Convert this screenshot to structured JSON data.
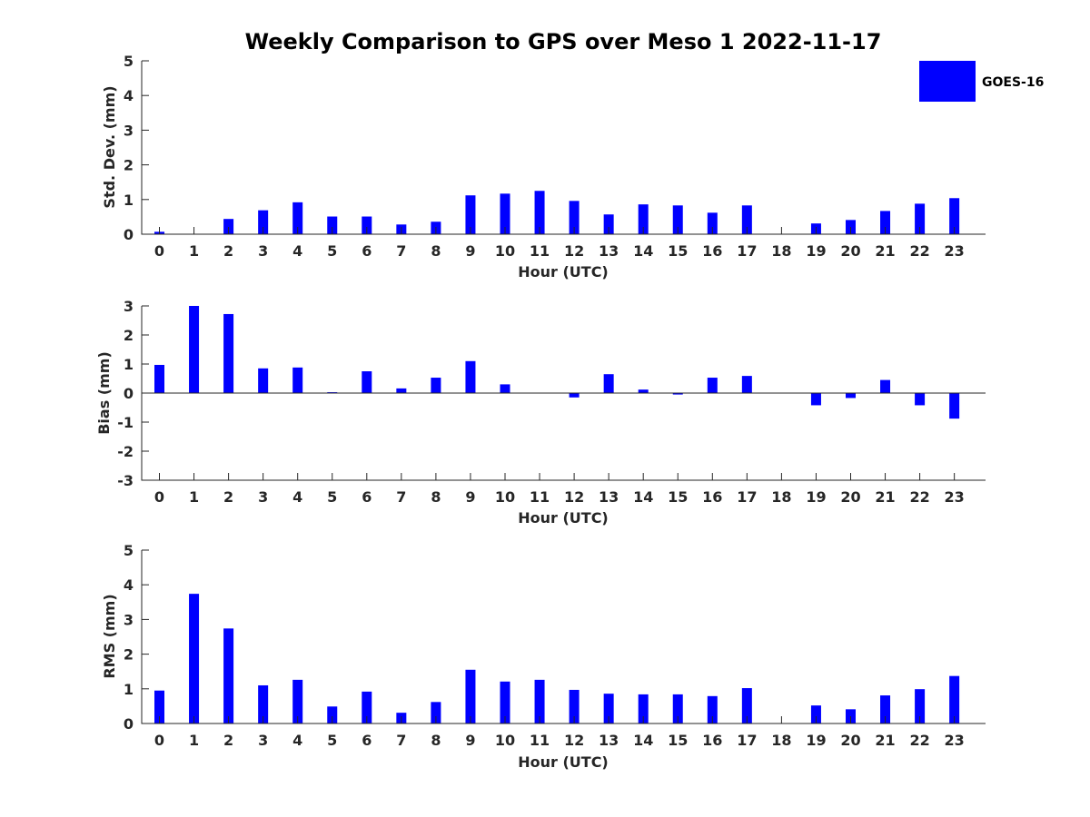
{
  "chart_data": [
    {
      "type": "bar",
      "title": "Weekly Comparison to GPS over Meso 1 2022-11-17",
      "xlabel": "Hour (UTC)",
      "ylabel": "Std. Dev. (mm)",
      "categories": [
        "0",
        "1",
        "2",
        "3",
        "4",
        "5",
        "6",
        "7",
        "8",
        "9",
        "10",
        "11",
        "12",
        "13",
        "14",
        "15",
        "16",
        "17",
        "18",
        "19",
        "20",
        "21",
        "22",
        "23"
      ],
      "series": [
        {
          "name": "GOES-16",
          "color": "#0000ff",
          "values": [
            0.07,
            0,
            0.44,
            0.69,
            0.92,
            0.51,
            0.51,
            0.28,
            0.36,
            1.12,
            1.17,
            1.25,
            0.96,
            0.57,
            0.86,
            0.83,
            0.62,
            0.83,
            0,
            0.31,
            0.41,
            0.67,
            0.88,
            1.04
          ]
        }
      ],
      "ylim": [
        0,
        5
      ],
      "yticks": [
        "0",
        "1",
        "2",
        "3",
        "4",
        "5"
      ],
      "legend": {
        "label": "GOES-16",
        "position": "top-right"
      }
    },
    {
      "type": "bar",
      "xlabel": "Hour (UTC)",
      "ylabel": "Bias (mm)",
      "categories": [
        "0",
        "1",
        "2",
        "3",
        "4",
        "5",
        "6",
        "7",
        "8",
        "9",
        "10",
        "11",
        "12",
        "13",
        "14",
        "15",
        "16",
        "17",
        "18",
        "19",
        "20",
        "21",
        "22",
        "23"
      ],
      "series": [
        {
          "name": "GOES-16",
          "color": "#0000ff",
          "values": [
            0.97,
            3.0,
            2.72,
            0.85,
            0.88,
            0.03,
            0.75,
            0.16,
            0.53,
            1.1,
            0.3,
            0,
            -0.15,
            0.65,
            0.12,
            -0.05,
            0.53,
            0.59,
            0,
            -0.42,
            -0.17,
            0.45,
            -0.42,
            -0.88
          ]
        }
      ],
      "ylim": [
        -3,
        3
      ],
      "yticks": [
        "-3",
        "-2",
        "-1",
        "0",
        "1",
        "2",
        "3"
      ]
    },
    {
      "type": "bar",
      "xlabel": "Hour (UTC)",
      "ylabel": "RMS (mm)",
      "categories": [
        "0",
        "1",
        "2",
        "3",
        "4",
        "5",
        "6",
        "7",
        "8",
        "9",
        "10",
        "11",
        "12",
        "13",
        "14",
        "15",
        "16",
        "17",
        "18",
        "19",
        "20",
        "21",
        "22",
        "23"
      ],
      "series": [
        {
          "name": "GOES-16",
          "color": "#0000ff",
          "values": [
            0.95,
            3.74,
            2.74,
            1.1,
            1.26,
            0.49,
            0.92,
            0.31,
            0.62,
            1.55,
            1.21,
            1.26,
            0.97,
            0.86,
            0.84,
            0.84,
            0.79,
            1.02,
            0,
            0.52,
            0.41,
            0.81,
            0.99,
            1.37
          ]
        }
      ],
      "ylim": [
        0,
        5
      ],
      "yticks": [
        "0",
        "1",
        "2",
        "3",
        "4",
        "5"
      ]
    }
  ]
}
